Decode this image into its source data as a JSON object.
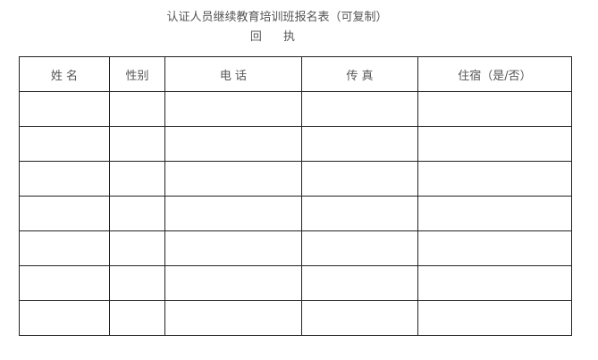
{
  "document": {
    "title": "认证人员继续教育培训班报名表（可复制）",
    "subtitle": "回 执"
  },
  "table": {
    "headers": [
      "姓 名",
      "性别",
      "电 话",
      "传 真",
      "住宿（是/否）"
    ],
    "rows": [
      [
        "",
        "",
        "",
        "",
        ""
      ],
      [
        "",
        "",
        "",
        "",
        ""
      ],
      [
        "",
        "",
        "",
        "",
        ""
      ],
      [
        "",
        "",
        "",
        "",
        ""
      ],
      [
        "",
        "",
        "",
        "",
        ""
      ],
      [
        "",
        "",
        "",
        "",
        ""
      ],
      [
        "",
        "",
        "",
        "",
        ""
      ]
    ]
  }
}
